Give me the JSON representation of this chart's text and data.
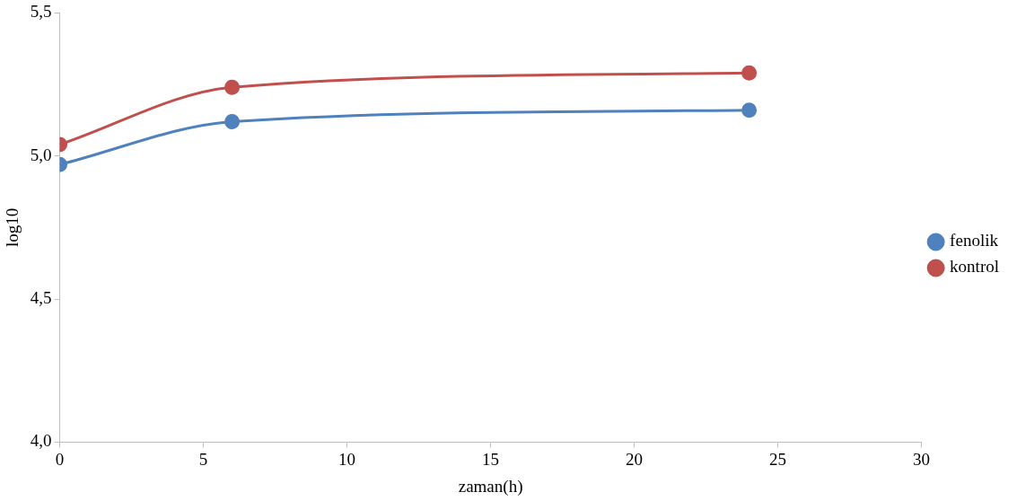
{
  "chart_data": {
    "type": "line",
    "xlabel": "zaman(h)",
    "ylabel": "log10",
    "x": [
      0,
      6,
      24
    ],
    "series": [
      {
        "name": "fenolik",
        "color": "#4f81bd",
        "values": [
          4.97,
          5.12,
          5.16
        ]
      },
      {
        "name": "kontrol",
        "color": "#c0504d",
        "values": [
          5.04,
          5.24,
          5.29
        ]
      }
    ],
    "xlim": [
      0,
      30
    ],
    "xticks": [
      0,
      5,
      10,
      15,
      20,
      25,
      30
    ],
    "ylim": [
      4.0,
      5.5
    ],
    "yticks": [
      {
        "value": 4.0,
        "label": "4,0"
      },
      {
        "value": 4.5,
        "label": "4,5"
      },
      {
        "value": 5.0,
        "label": "5,0"
      },
      {
        "value": 5.5,
        "label": "5,5"
      }
    ],
    "grid": false,
    "legend": "right",
    "marker": "circle",
    "line_style": "solid"
  }
}
